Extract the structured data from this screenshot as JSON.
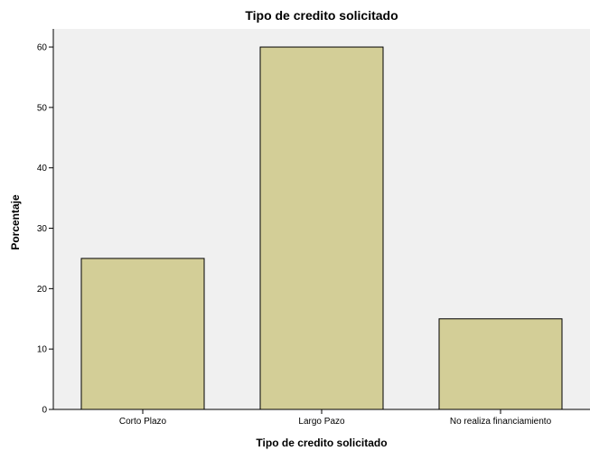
{
  "chart_data": {
    "type": "bar",
    "title": "Tipo de credito solicitado",
    "xlabel": "Tipo de credito solicitado",
    "ylabel": "Porcentaje",
    "categories": [
      "Corto Plazo",
      "Largo Pazo",
      "No realiza financiamiento"
    ],
    "values": [
      25,
      60,
      15
    ],
    "ylim": [
      0,
      63
    ],
    "yticks": [
      0,
      10,
      20,
      30,
      40,
      50,
      60
    ],
    "grid": false,
    "colors": {
      "plot_background": "#f0f0f0",
      "bar_fill": "#d3ce97",
      "bar_stroke": "#000000"
    }
  }
}
